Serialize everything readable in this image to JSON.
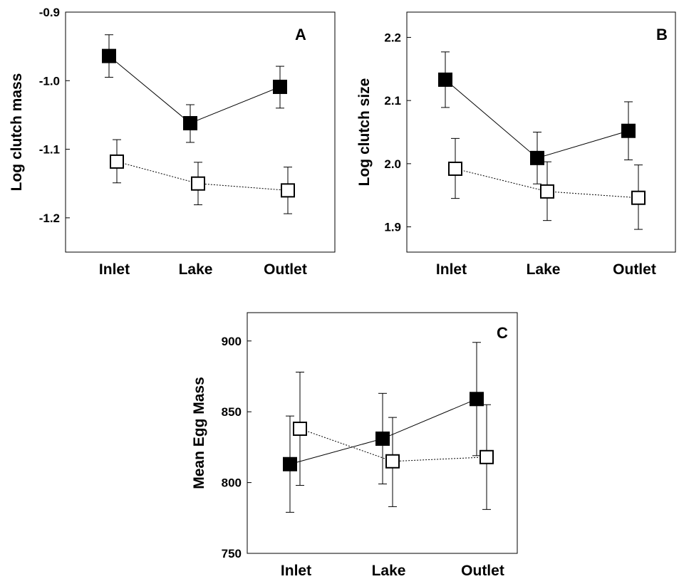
{
  "chart_data": [
    {
      "type": "line",
      "panel_label": "A",
      "ylabel": "Log clutch mass",
      "categories": [
        "Inlet",
        "Lake",
        "Outlet"
      ],
      "ylim": [
        -1.25,
        -0.9
      ],
      "yticks": [
        -0.9,
        -1.0,
        -1.1,
        -1.2
      ],
      "ytick_labels": [
        "-0.9",
        "-1.0",
        "-1.1",
        "-1.2"
      ],
      "series": [
        {
          "marker": "filled-square",
          "line": "solid",
          "values": [
            -0.964,
            -1.062,
            -1.009
          ],
          "err_low": [
            -0.995,
            -1.09,
            -1.04
          ],
          "err_high": [
            -0.933,
            -1.035,
            -0.979
          ]
        },
        {
          "marker": "open-square",
          "line": "dotted",
          "values": [
            -1.118,
            -1.15,
            -1.16
          ],
          "err_low": [
            -1.149,
            -1.181,
            -1.194
          ],
          "err_high": [
            -1.086,
            -1.119,
            -1.126
          ]
        }
      ]
    },
    {
      "type": "line",
      "panel_label": "B",
      "ylabel": "Log clutch size",
      "categories": [
        "Inlet",
        "Lake",
        "Outlet"
      ],
      "ylim": [
        1.86,
        2.24
      ],
      "yticks": [
        2.2,
        2.1,
        2.0,
        1.9
      ],
      "ytick_labels": [
        "2.2",
        "2.1",
        "2.0",
        "1.9"
      ],
      "series": [
        {
          "marker": "filled-square",
          "line": "solid",
          "values": [
            2.133,
            2.009,
            2.052
          ],
          "err_low": [
            2.089,
            1.968,
            2.006
          ],
          "err_high": [
            2.177,
            2.05,
            2.098
          ]
        },
        {
          "marker": "open-square",
          "line": "dotted",
          "values": [
            1.992,
            1.956,
            1.946
          ],
          "err_low": [
            1.945,
            1.91,
            1.896
          ],
          "err_high": [
            2.04,
            2.003,
            1.998
          ]
        }
      ]
    },
    {
      "type": "line",
      "panel_label": "C",
      "ylabel": "Mean Egg Mass",
      "categories": [
        "Inlet",
        "Lake",
        "Outlet"
      ],
      "ylim": [
        750,
        920
      ],
      "yticks": [
        900,
        850,
        800,
        750
      ],
      "ytick_labels": [
        "900",
        "850",
        "800",
        "750"
      ],
      "series": [
        {
          "marker": "filled-square",
          "line": "solid",
          "values": [
            813,
            831,
            859
          ],
          "err_low": [
            779,
            799,
            819
          ],
          "err_high": [
            847,
            863,
            899
          ]
        },
        {
          "marker": "open-square",
          "line": "dotted",
          "values": [
            838,
            815,
            818
          ],
          "err_low": [
            798,
            783,
            781
          ],
          "err_high": [
            878,
            846,
            855
          ]
        }
      ]
    }
  ]
}
